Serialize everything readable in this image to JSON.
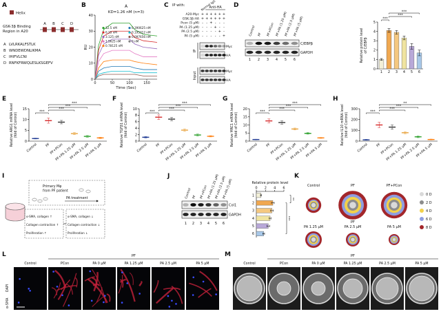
{
  "panel_a": {
    "letter": "A",
    "legend": "Helix",
    "region": [
      "GSK-3β Binding",
      "Region in A20"
    ],
    "domains": [
      "A",
      "B",
      "C",
      "D"
    ],
    "sequences": [
      {
        "id": "A",
        "seq": "LVLRKALFSTLK"
      },
      {
        "id": "B",
        "seq": "WNDEWDNLIKMA"
      },
      {
        "id": "C",
        "seq": "IHIFVLCNI"
      },
      {
        "id": "D",
        "seq": "RNFKFRWQLESLKSGEFV"
      }
    ]
  },
  "panel_c": {
    "letter": "C",
    "ip_with": "IP with:",
    "normal": "Normal IgG",
    "anti": "Anti-HA",
    "rows": [
      {
        "label": "A20-Myc",
        "signs": [
          "+",
          "+",
          "+",
          "+",
          "+",
          "+"
        ]
      },
      {
        "label": "GSK-3β-HA",
        "signs": [
          "+",
          "+",
          "+",
          "+",
          "+",
          "+"
        ]
      },
      {
        "label": "Pcon (5 μM)",
        "signs": [
          "-",
          "-",
          "+",
          "-",
          "-",
          "-"
        ]
      },
      {
        "label": "PA (1.25 μM)",
        "signs": [
          "-",
          "-",
          "-",
          "+",
          "-",
          "-"
        ]
      },
      {
        "label": "PA (2.5 μM)",
        "signs": [
          "-",
          "-",
          "-",
          "-",
          "+",
          "-"
        ]
      },
      {
        "label": "PA (5 μM)",
        "signs": [
          "-",
          "-",
          "-",
          "-",
          "-",
          "+"
        ]
      }
    ],
    "ip": "IP",
    "input": "Input",
    "bands": [
      "Myc",
      "HA",
      "Myc",
      "HA"
    ]
  },
  "blot_d": {
    "lanes": [
      "Control",
      "PF",
      "PF+PCon",
      "PF+PA (1.25 μM)",
      "PF+PA (2.5 μM)",
      "PF+PA (5 μM)"
    ],
    "proteins": [
      "C/EBPβ",
      "GAPDH"
    ],
    "numbers": [
      "1",
      "2",
      "3",
      "4",
      "5",
      "6"
    ]
  },
  "blot_j": {
    "lanes": [
      "Control",
      "PF",
      "PF+PCon",
      "PF+PA (1.25 μM)",
      "PF+PA (2.5 μM)",
      "PF+PA (5 μM)"
    ],
    "proteins": [
      "Col1",
      "GAPDH"
    ],
    "numbers": [
      "1",
      "2",
      "3",
      "4",
      "5",
      "6"
    ]
  },
  "panel_i": {
    "letter": "I",
    "source": [
      "Primary Mφ",
      "from PF patient"
    ],
    "treatment": "PA treatment",
    "left": [
      "α-SMA, collagen ↑",
      "Collagen contraction ↑",
      "Proliferation ↑"
    ],
    "right": [
      "α-SMA, collagen ↓",
      "Collagen contraction ↓",
      "Proliferation ↓"
    ]
  },
  "panel_l": {
    "letter": "L",
    "labels": [
      "Control",
      "PCon",
      "PA 0 μM",
      "PA 1.25 μM",
      "PA 2.5 μM",
      "PA 5 μM"
    ],
    "group": "PF",
    "stain": [
      "α-SMA",
      "DAPI"
    ]
  },
  "panel_m": {
    "letter": "M",
    "labels": [
      "Control",
      "PCon",
      "PA 0 μM",
      "PA 1.25 μM",
      "PA 2.5 μM",
      "PA 5 μM"
    ],
    "group": "PF"
  },
  "chart_data": [
    {
      "type": "line",
      "letter": "B",
      "title": "A",
      "title_color": "#d62728",
      "subtitle": "KD=1.26 nM (n=3)",
      "xlabel": "Time (Sec)",
      "ylabel": "RU",
      "x": [
        0,
        10,
        25,
        50,
        100,
        115,
        140,
        180
      ],
      "xlim": [
        0,
        180
      ],
      "xticks": [
        0,
        50,
        100,
        150
      ],
      "ylim": [
        0,
        40
      ],
      "yticks": [
        0,
        10,
        20,
        30,
        40
      ],
      "series": [
        {
          "name": "12.5 nM",
          "color": "#2ca02c",
          "values": [
            0,
            21,
            31,
            35,
            35,
            31,
            28,
            27
          ]
        },
        {
          "name": "6.25 nM",
          "color": "#d62728",
          "values": [
            0,
            18,
            27,
            30,
            30,
            26,
            24,
            23
          ]
        },
        {
          "name": "3.125 nM",
          "color": "#9467bd",
          "values": [
            0,
            15,
            22,
            25,
            25,
            22,
            20,
            19
          ]
        },
        {
          "name": "1.5625 nM",
          "color": "#e377c2",
          "values": [
            0,
            11,
            16,
            18,
            18,
            16,
            14,
            14
          ]
        },
        {
          "name": "0.78125 nM",
          "color": "#ff7f0e",
          "values": [
            0,
            7,
            11,
            12,
            12,
            11,
            10,
            9
          ]
        },
        {
          "name": "0.390625 nM",
          "color": "#1f77b4",
          "values": [
            0,
            5,
            7,
            8,
            8,
            7,
            6,
            6
          ]
        },
        {
          "name": "0.195312 nM",
          "color": "#17becf",
          "values": [
            0,
            3,
            4,
            5,
            5,
            4,
            4,
            4
          ]
        },
        {
          "name": "0.097656 nM",
          "color": "#8c564b",
          "values": [
            0,
            2,
            3,
            3,
            3,
            3,
            2,
            2
          ]
        },
        {
          "name": "0 nM",
          "color": "#7f7f7f",
          "values": [
            0,
            0,
            0,
            0,
            0,
            0,
            0,
            0
          ]
        }
      ]
    },
    {
      "type": "bar",
      "letter": "D",
      "ylabel": [
        "Relative protein level",
        "of C/EBPβ"
      ],
      "categories": [
        "1",
        "2",
        "3",
        "4",
        "5",
        "6"
      ],
      "values": [
        1,
        4.1,
        3.9,
        3.3,
        2.4,
        1.7
      ],
      "errors": [
        0.1,
        0.2,
        0.2,
        0.2,
        0.3,
        0.3
      ],
      "colors": [
        "#f3f0d8",
        "#f0a850",
        "#f5c880",
        "#f0e4a0",
        "#b8a8d8",
        "#a8c8e8"
      ],
      "ylim": [
        0,
        5
      ],
      "yticks": [
        0,
        1,
        2,
        3,
        4,
        5
      ],
      "annotations": [
        "***",
        "***",
        "***"
      ]
    },
    {
      "type": "dot",
      "letter": "E",
      "ylabel": [
        "Relative ARG1 mRNA level",
        "(fold of Control)"
      ],
      "categories": [
        "Control",
        "PF",
        "PF+PCon",
        "PF+PA 1.25 μM",
        "PF+PA 2.5 μM",
        "PF+PA 5 μM"
      ],
      "values": [
        1.2,
        9.5,
        8.8,
        3.5,
        2.2,
        1.5
      ],
      "errors": [
        0.2,
        1.2,
        0.8,
        0.5,
        0.4,
        0.3
      ],
      "colors": [
        "#1f3a93",
        "#d62728",
        "#333333",
        "#e8a33d",
        "#2ca02c",
        "#ff7f0e"
      ],
      "ylim": [
        0,
        15
      ],
      "yticks": [
        0,
        5,
        10,
        15
      ],
      "annotations": [
        "***",
        "***",
        "***",
        "***"
      ]
    },
    {
      "type": "dot",
      "letter": "F",
      "ylabel": [
        "Relative TGFβ1 mRNA level",
        "(fold of Control)"
      ],
      "categories": [
        "Control",
        "PF",
        "PF+PCon",
        "PF+PA 1.25 μM",
        "PF+PA 2.5 μM",
        "PF+PA 5 μM"
      ],
      "values": [
        1.2,
        7.4,
        6.8,
        3.4,
        1.9,
        1.5
      ],
      "errors": [
        0.2,
        0.7,
        0.5,
        0.4,
        0.3,
        0.2
      ],
      "colors": [
        "#1f3a93",
        "#d62728",
        "#333333",
        "#e8a33d",
        "#2ca02c",
        "#ff7f0e"
      ],
      "ylim": [
        0,
        10
      ],
      "yticks": [
        0,
        2,
        4,
        6,
        8,
        10
      ],
      "annotations": [
        "***",
        "***",
        "***",
        "***"
      ]
    },
    {
      "type": "dot",
      "letter": "G",
      "ylabel": [
        "Relative MRC1 mRNA level",
        "(fold of Control)"
      ],
      "categories": [
        "Control",
        "PF",
        "PF+PCon",
        "PF+PA 1.25 μM",
        "PF+PA 2.5 μM",
        "PF+PA 5 μM"
      ],
      "values": [
        1,
        12.5,
        11.5,
        7.5,
        4.8,
        2
      ],
      "errors": [
        0.2,
        1.2,
        1,
        0.6,
        0.5,
        0.3
      ],
      "colors": [
        "#1f3a93",
        "#d62728",
        "#333333",
        "#e8a33d",
        "#2ca02c",
        "#ff7f0e"
      ],
      "ylim": [
        0,
        20
      ],
      "yticks": [
        0,
        5,
        10,
        15,
        20
      ],
      "annotations": [
        "***",
        "***",
        "***",
        "***"
      ]
    },
    {
      "type": "dot",
      "letter": "H",
      "ylabel": [
        "Relative IL10 mRNA level",
        "(fold of Control)"
      ],
      "categories": [
        "Control",
        "PF",
        "PF+PCon",
        "PF+PA 1.25 μM",
        "PF+PA 2.5 μM",
        "PF+PA 5 μM"
      ],
      "values": [
        12,
        150,
        130,
        78,
        40,
        15
      ],
      "errors": [
        4,
        25,
        20,
        10,
        8,
        4
      ],
      "colors": [
        "#1f3a93",
        "#d62728",
        "#333333",
        "#e8a33d",
        "#2ca02c",
        "#ff7f0e"
      ],
      "ylim": [
        0,
        300
      ],
      "yticks": [
        0,
        100,
        200,
        300
      ],
      "annotations": [
        "***",
        "***",
        "***",
        "**"
      ]
    },
    {
      "type": "hbar",
      "letter": "J",
      "title": "Relative protein level",
      "categories": [
        "1",
        "2",
        "3",
        "4",
        "5",
        "6"
      ],
      "values": [
        1,
        3.6,
        3.4,
        3.0,
        2.6,
        1.6
      ],
      "errors": [
        0.1,
        0.3,
        0.3,
        0.2,
        0.3,
        0.2
      ],
      "colors": [
        "#f3f0d8",
        "#f0a850",
        "#f5c880",
        "#f0e4a0",
        "#b8a8d8",
        "#a8c8e8"
      ],
      "xlim": [
        0,
        6
      ],
      "xticks": [
        0,
        2,
        4,
        6
      ],
      "annotations": [
        "***",
        "**"
      ]
    },
    {
      "type": "bubble",
      "letter": "K",
      "group_label": "PF",
      "categories": [
        "Control",
        "PF",
        "PF+PCon",
        "PA 1.25 μM",
        "PA 2.5 μM",
        "PA 5 μM"
      ],
      "series": [
        {
          "name": "0 D",
          "color": "#d9d9d9",
          "values": [
            4,
            6,
            6,
            4,
            3.5,
            3
          ]
        },
        {
          "name": "2 D",
          "color": "#8c8c8c",
          "values": [
            6,
            10,
            10,
            6,
            5,
            4
          ]
        },
        {
          "name": "4 D",
          "color": "#f2d14b",
          "values": [
            8,
            15,
            14,
            8.5,
            7,
            5.5
          ]
        },
        {
          "name": "6 D",
          "color": "#8e9ee0",
          "values": [
            10,
            20,
            19,
            11.5,
            9.5,
            7.5
          ]
        },
        {
          "name": "8 D",
          "color": "#a3262a",
          "values": [
            14,
            26,
            24,
            15,
            12.5,
            10
          ]
        }
      ]
    }
  ]
}
